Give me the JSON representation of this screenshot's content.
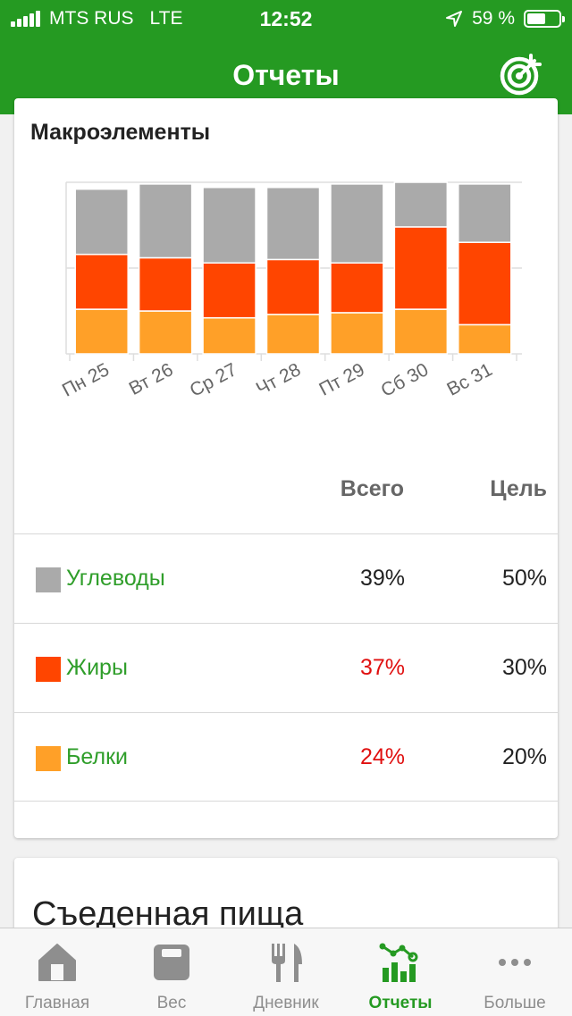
{
  "status": {
    "carrier": "MTS RUS",
    "network": "LTE",
    "time": "12:52",
    "battery_text": "59 %",
    "battery_level": 0.59
  },
  "header": {
    "title": "Отчеты",
    "icon": "target-icon"
  },
  "macros": {
    "title": "Макроэлементы",
    "headers": {
      "total": "Всего",
      "goal": "Цель"
    },
    "rows": [
      {
        "label": "Углеводы",
        "total": "39%",
        "goal": "50%",
        "color": "#aaaaaa",
        "over": false
      },
      {
        "label": "Жиры",
        "total": "37%",
        "goal": "30%",
        "color": "#ff4500",
        "over": true
      },
      {
        "label": "Белки",
        "total": "24%",
        "goal": "20%",
        "color": "#ffa028",
        "over": true
      }
    ]
  },
  "chart_data": {
    "type": "bar",
    "stacked": true,
    "categories": [
      "Пн 25",
      "Вт 26",
      "Ср 27",
      "Чт 28",
      "Пт 29",
      "Сб 30",
      "Вс 31"
    ],
    "series": [
      {
        "name": "Белки",
        "color": "#ffa028",
        "values": [
          26,
          25,
          21,
          23,
          24,
          26,
          17
        ]
      },
      {
        "name": "Жиры",
        "color": "#ff4500",
        "values": [
          32,
          31,
          32,
          32,
          29,
          48,
          48
        ]
      },
      {
        "name": "Углеводы",
        "color": "#aaaaaa",
        "values": [
          38,
          43,
          44,
          42,
          46,
          26,
          34
        ]
      }
    ],
    "ylim": [
      0,
      100
    ],
    "grid": true
  },
  "eaten": {
    "title": "Съеденная пища"
  },
  "tabs": [
    {
      "label": "Главная",
      "icon": "home-icon",
      "active": false
    },
    {
      "label": "Вес",
      "icon": "scale-icon",
      "active": false
    },
    {
      "label": "Дневник",
      "icon": "fork-knife-icon",
      "active": false
    },
    {
      "label": "Отчеты",
      "icon": "reports-chart-icon",
      "active": true
    },
    {
      "label": "Больше",
      "icon": "more-dots-icon",
      "active": false
    }
  ]
}
